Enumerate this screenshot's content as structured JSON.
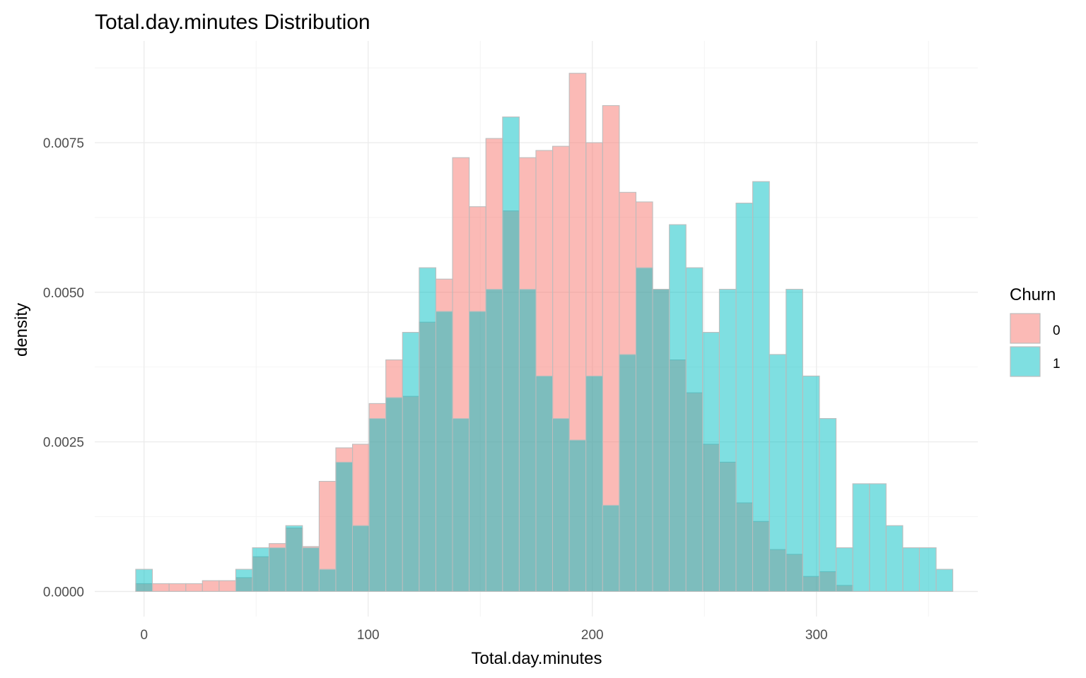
{
  "chart_data": {
    "type": "histogram",
    "title": "Total.day.minutes Distribution",
    "xlabel": "Total.day.minutes",
    "ylabel": "density",
    "xlim": [
      -22,
      372
    ],
    "ylim": [
      -0.00042,
      0.0092
    ],
    "x_ticks": [
      0,
      100,
      200,
      300
    ],
    "x_tick_labels": [
      "0",
      "100",
      "200",
      "300"
    ],
    "y_ticks": [
      0,
      0.0025,
      0.005,
      0.0075
    ],
    "y_tick_labels": [
      "0.0000",
      "0.0025",
      "0.0050",
      "0.0075"
    ],
    "grid": true,
    "legend": {
      "title": "Churn",
      "position": "right"
    },
    "bin_width": 7.44,
    "bin_start": -3.72,
    "series": [
      {
        "name": "0",
        "color": "#F8766D",
        "density": [
          0.00013,
          0.00013,
          0.00013,
          0.00013,
          0.00018,
          0.00018,
          0.00023,
          0.00058,
          0.0008,
          0.00106,
          0.00075,
          0.00184,
          0.0024,
          0.00246,
          0.00314,
          0.00387,
          0.00326,
          0.0045,
          0.00522,
          0.00725,
          0.00643,
          0.00757,
          0.00636,
          0.00725,
          0.00737,
          0.00744,
          0.00866,
          0.0075,
          0.00812,
          0.00667,
          0.00651,
          0.00505,
          0.00387,
          0.00332,
          0.00246,
          0.00216,
          0.00148,
          0.00117,
          0.0007,
          0.00062,
          0.00025,
          0.00033,
          0.0001,
          0.0,
          0.0,
          0.0,
          0.0,
          0.0
        ]
      },
      {
        "name": "1",
        "color": "#00BFC4",
        "density": [
          0.00037,
          0.0,
          0.0,
          0.0,
          0.0,
          0.0,
          0.00037,
          0.00073,
          0.00073,
          0.0011,
          0.00073,
          0.00037,
          0.00216,
          0.0011,
          0.00289,
          0.00324,
          0.00433,
          0.00541,
          0.00468,
          0.00289,
          0.00468,
          0.00505,
          0.00793,
          0.00505,
          0.0036,
          0.00289,
          0.00253,
          0.0036,
          0.00144,
          0.00396,
          0.00541,
          0.00505,
          0.00613,
          0.00541,
          0.00433,
          0.00505,
          0.00649,
          0.00685,
          0.00396,
          0.00505,
          0.0036,
          0.00289,
          0.00073,
          0.0018,
          0.0018,
          0.0011,
          0.00073,
          0.00073,
          0.00037
        ]
      }
    ]
  }
}
